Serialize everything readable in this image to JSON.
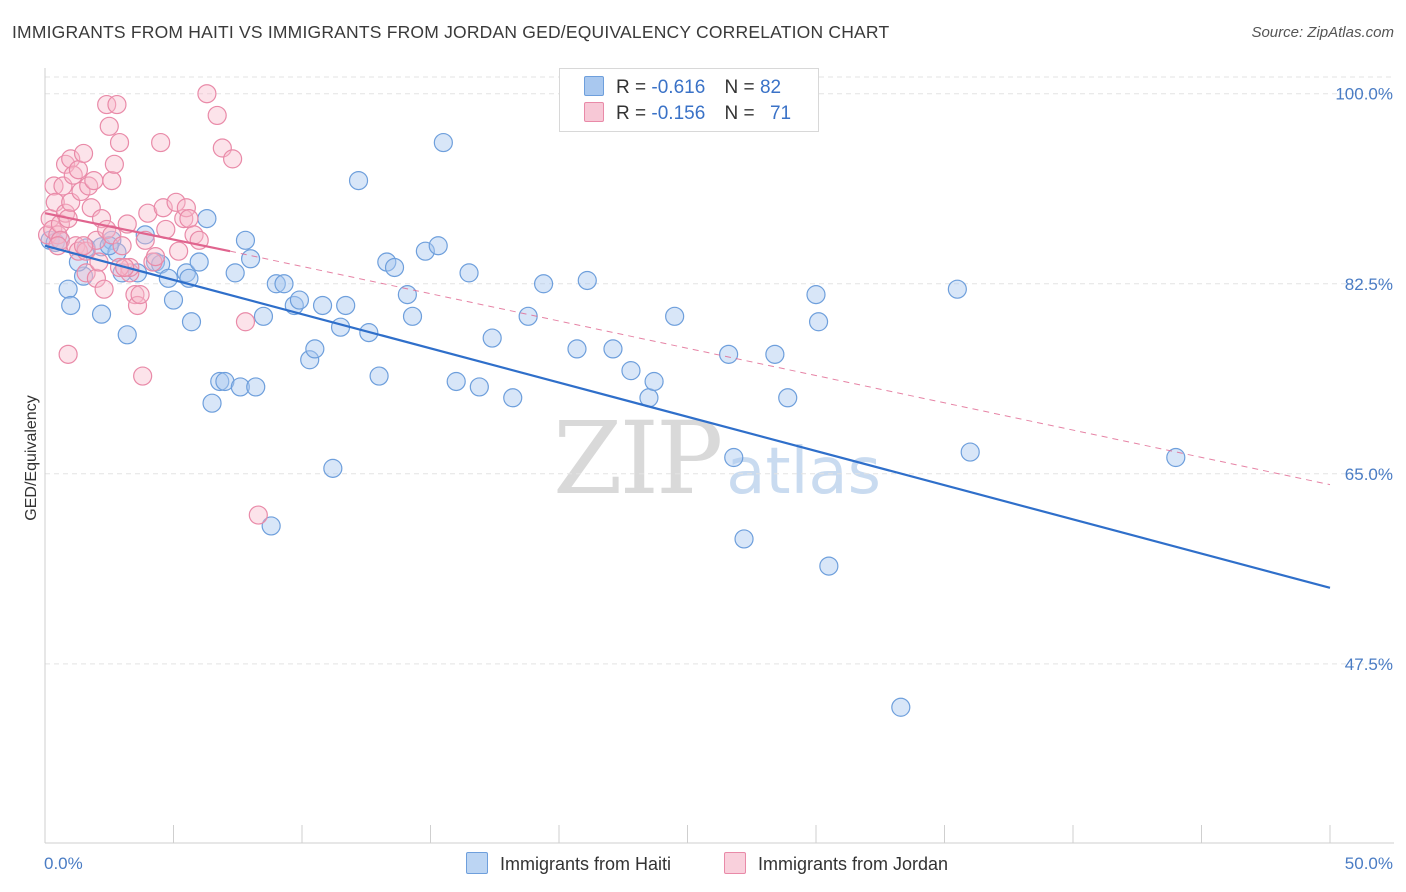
{
  "title": "IMMIGRANTS FROM HAITI VS IMMIGRANTS FROM JORDAN GED/EQUIVALENCY CORRELATION CHART",
  "source": "Source: ZipAtlas.com",
  "watermark": {
    "zip": "ZIP",
    "atlas": "atlas"
  },
  "legend": {
    "haiti": {
      "r_label": "R =",
      "r_value": "-0.616",
      "n_label": "N =",
      "n_value": "82"
    },
    "jordan": {
      "r_label": "R =",
      "r_value": "-0.156",
      "n_label": "N =",
      "n_value": "71"
    }
  },
  "bottom_legend": {
    "haiti": "Immigrants from Haiti",
    "jordan": "Immigrants from Jordan"
  },
  "colors": {
    "haiti_fill": "#a9c8ef",
    "haiti_stroke": "#6e9fdc",
    "haiti_line": "#2f6fca",
    "jordan_fill": "#f7b8cb",
    "jordan_stroke": "#e98aa8",
    "jordan_line": "#e0648e",
    "tick_text": "#4a7cc4",
    "grid": "#e3e3e3"
  },
  "chart_data": {
    "type": "scatter",
    "title": "IMMIGRANTS FROM HAITI VS IMMIGRANTS FROM JORDAN GED/EQUIVALENCY CORRELATION CHART",
    "xlabel": "",
    "ylabel": "GED/Equivalency",
    "xlim": [
      0,
      50
    ],
    "ylim": [
      31.0,
      102.0
    ],
    "x_tick_labels": [
      "0.0%",
      "50.0%"
    ],
    "y_ticks": [
      47.5,
      65.0,
      82.5,
      100.0
    ],
    "y_tick_labels": [
      "47.5%",
      "65.0%",
      "82.5%",
      "100.0%"
    ],
    "grid": true,
    "legend_position": "top-center",
    "series": [
      {
        "name": "Immigrants from Haiti",
        "r": -0.616,
        "n": 82,
        "trend": {
          "x": [
            0,
            50
          ],
          "y": [
            86.0,
            54.5
          ],
          "style": "solid"
        },
        "points": [
          [
            0.2,
            86.5
          ],
          [
            0.4,
            86.3
          ],
          [
            0.6,
            86.5
          ],
          [
            0.9,
            82.0
          ],
          [
            1.5,
            83.2
          ],
          [
            1.6,
            85.8
          ],
          [
            2.2,
            85.9
          ],
          [
            2.2,
            79.7
          ],
          [
            2.6,
            86.5
          ],
          [
            2.8,
            85.4
          ],
          [
            3.0,
            83.5
          ],
          [
            3.2,
            77.8
          ],
          [
            3.6,
            83.5
          ],
          [
            3.9,
            87.0
          ],
          [
            4.3,
            84.5
          ],
          [
            4.5,
            84.3
          ],
          [
            4.8,
            83.0
          ],
          [
            5.0,
            81.0
          ],
          [
            5.5,
            83.5
          ],
          [
            5.6,
            83.0
          ],
          [
            5.7,
            79.0
          ],
          [
            6.0,
            84.5
          ],
          [
            6.3,
            88.5
          ],
          [
            6.5,
            71.5
          ],
          [
            6.8,
            73.5
          ],
          [
            7.0,
            73.5
          ],
          [
            7.4,
            83.5
          ],
          [
            7.6,
            73.0
          ],
          [
            7.8,
            86.5
          ],
          [
            8.0,
            84.8
          ],
          [
            8.2,
            73.0
          ],
          [
            8.5,
            79.5
          ],
          [
            8.8,
            60.2
          ],
          [
            9.0,
            82.5
          ],
          [
            9.3,
            82.5
          ],
          [
            9.7,
            80.5
          ],
          [
            9.9,
            81.0
          ],
          [
            10.3,
            75.5
          ],
          [
            10.5,
            76.5
          ],
          [
            10.8,
            80.5
          ],
          [
            11.2,
            65.5
          ],
          [
            11.5,
            78.5
          ],
          [
            11.7,
            80.5
          ],
          [
            12.2,
            92.0
          ],
          [
            12.6,
            78.0
          ],
          [
            13.0,
            74.0
          ],
          [
            13.3,
            84.5
          ],
          [
            13.6,
            84.0
          ],
          [
            14.1,
            81.5
          ],
          [
            14.3,
            79.5
          ],
          [
            14.8,
            85.5
          ],
          [
            15.3,
            86.0
          ],
          [
            15.5,
            95.5
          ],
          [
            16.0,
            73.5
          ],
          [
            16.5,
            83.5
          ],
          [
            16.9,
            73.0
          ],
          [
            17.4,
            77.5
          ],
          [
            18.2,
            72.0
          ],
          [
            18.8,
            79.5
          ],
          [
            19.4,
            82.5
          ],
          [
            20.7,
            76.5
          ],
          [
            21.1,
            82.8
          ],
          [
            22.1,
            76.5
          ],
          [
            22.8,
            74.5
          ],
          [
            23.5,
            72.0
          ],
          [
            23.7,
            73.5
          ],
          [
            24.5,
            79.5
          ],
          [
            26.6,
            76.0
          ],
          [
            26.8,
            66.5
          ],
          [
            27.2,
            59.0
          ],
          [
            28.4,
            76.0
          ],
          [
            28.9,
            72.0
          ],
          [
            30.0,
            81.5
          ],
          [
            30.1,
            79.0
          ],
          [
            30.5,
            56.5
          ],
          [
            33.3,
            43.5
          ],
          [
            35.5,
            82.0
          ],
          [
            36.0,
            67.0
          ],
          [
            44.0,
            66.5
          ],
          [
            1.0,
            80.5
          ],
          [
            1.3,
            84.5
          ],
          [
            2.5,
            86.0
          ]
        ]
      },
      {
        "name": "Immigrants from Jordan",
        "r": -0.156,
        "n": 71,
        "trend": {
          "x": [
            0,
            7.2
          ],
          "y": [
            89.0,
            85.5
          ],
          "extended": {
            "x": [
              7.2,
              50
            ],
            "y": [
              85.5,
              64.0
            ]
          },
          "style": "solid-then-dashed"
        },
        "points": [
          [
            0.1,
            87.0
          ],
          [
            0.2,
            88.5
          ],
          [
            0.3,
            87.5
          ],
          [
            0.35,
            91.5
          ],
          [
            0.4,
            90.0
          ],
          [
            0.5,
            87.0
          ],
          [
            0.6,
            88.0
          ],
          [
            0.6,
            86.5
          ],
          [
            0.7,
            91.5
          ],
          [
            0.8,
            89.0
          ],
          [
            0.8,
            93.5
          ],
          [
            0.9,
            88.5
          ],
          [
            1.0,
            90.0
          ],
          [
            1.0,
            94.0
          ],
          [
            1.1,
            92.5
          ],
          [
            1.2,
            86.0
          ],
          [
            1.3,
            93.0
          ],
          [
            1.3,
            85.5
          ],
          [
            1.4,
            91.0
          ],
          [
            1.5,
            94.5
          ],
          [
            1.6,
            83.5
          ],
          [
            1.6,
            85.5
          ],
          [
            1.7,
            91.5
          ],
          [
            1.8,
            89.5
          ],
          [
            1.9,
            92.0
          ],
          [
            2.0,
            86.5
          ],
          [
            2.0,
            83.0
          ],
          [
            2.1,
            84.5
          ],
          [
            2.2,
            88.5
          ],
          [
            2.3,
            82.0
          ],
          [
            2.4,
            87.5
          ],
          [
            2.4,
            99.0
          ],
          [
            2.5,
            97.0
          ],
          [
            2.6,
            87.0
          ],
          [
            2.6,
            92.0
          ],
          [
            2.7,
            93.5
          ],
          [
            2.8,
            99.0
          ],
          [
            2.9,
            95.5
          ],
          [
            3.0,
            86.0
          ],
          [
            3.2,
            88.0
          ],
          [
            3.3,
            83.5
          ],
          [
            3.3,
            84.0
          ],
          [
            3.5,
            81.5
          ],
          [
            3.6,
            80.5
          ],
          [
            3.7,
            81.5
          ],
          [
            3.9,
            86.5
          ],
          [
            4.0,
            89.0
          ],
          [
            4.2,
            84.5
          ],
          [
            4.3,
            85.0
          ],
          [
            4.5,
            95.5
          ],
          [
            4.6,
            89.5
          ],
          [
            4.7,
            87.5
          ],
          [
            5.1,
            90.0
          ],
          [
            5.2,
            85.5
          ],
          [
            5.4,
            88.5
          ],
          [
            5.5,
            89.5
          ],
          [
            5.6,
            88.5
          ],
          [
            5.8,
            87.0
          ],
          [
            6.0,
            86.5
          ],
          [
            6.3,
            100.0
          ],
          [
            6.7,
            98.0
          ],
          [
            6.9,
            95.0
          ],
          [
            7.3,
            94.0
          ],
          [
            7.8,
            79.0
          ],
          [
            0.9,
            76.0
          ],
          [
            1.5,
            86.0
          ],
          [
            3.8,
            74.0
          ],
          [
            2.9,
            84.0
          ],
          [
            3.1,
            84.0
          ],
          [
            8.3,
            61.2
          ],
          [
            0.5,
            86.0
          ]
        ]
      }
    ]
  }
}
